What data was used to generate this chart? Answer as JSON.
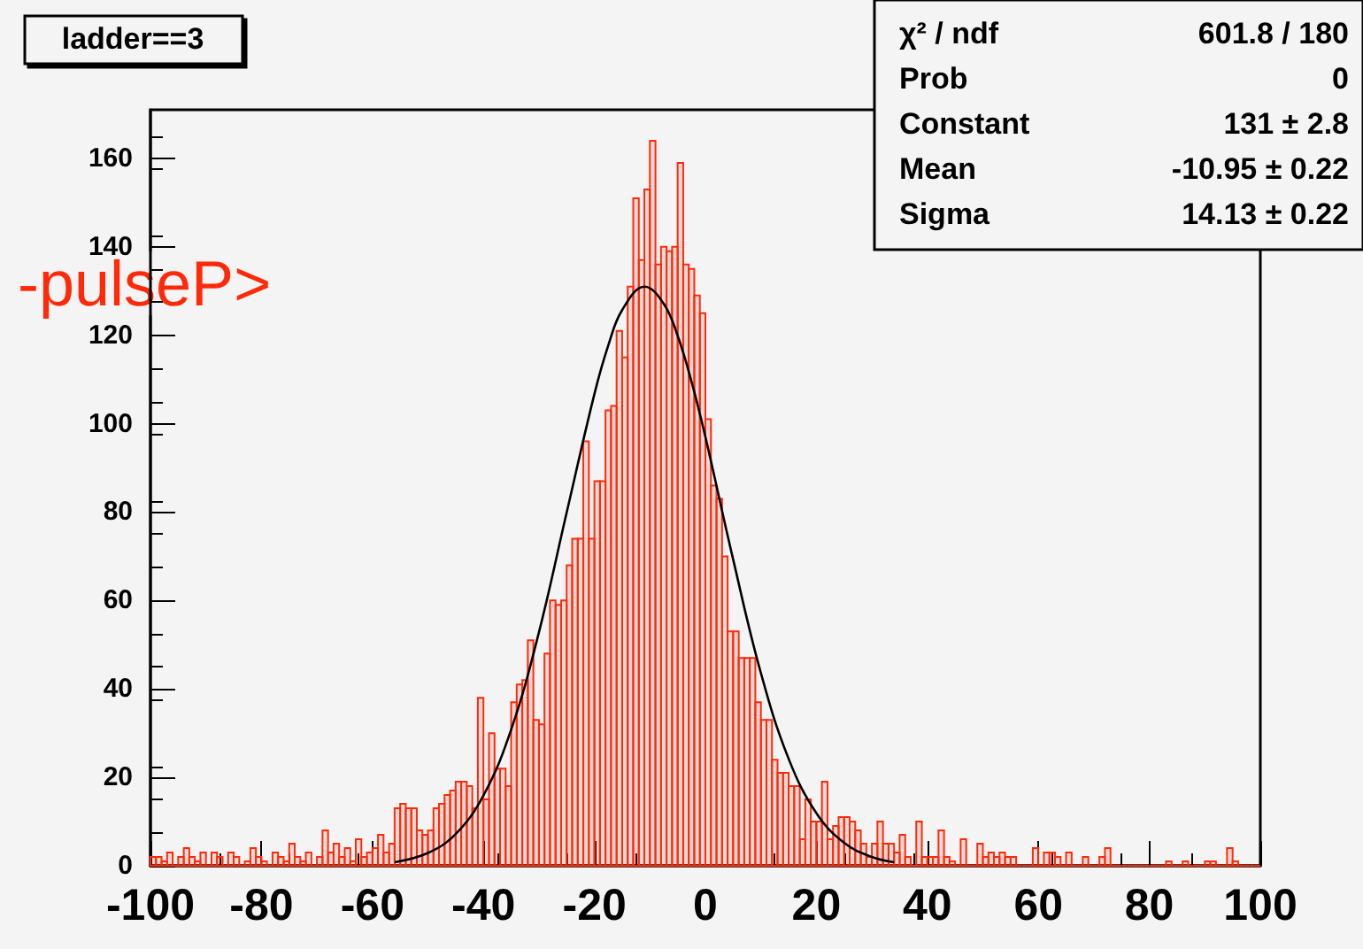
{
  "chart_data": {
    "type": "histogram",
    "title": "ladder==3",
    "ylabel": "-pulseP>",
    "annotations": [
      "χ² / ndf",
      "601.8 / 180",
      "Prob",
      "0",
      "Constant",
      "131 ± 2.8",
      "Mean",
      "-10.95 ± 0.22",
      "Sigma",
      "14.13 ± 0.22"
    ],
    "bins": [
      -100,
      -99,
      -98,
      -97,
      -96,
      -95,
      -94,
      -93,
      -92,
      -91,
      -90,
      -89,
      -88,
      -87,
      -86,
      -85,
      -84,
      -83,
      -82,
      -81,
      -80,
      -79,
      -78,
      -77,
      -76,
      -75,
      -74,
      -73,
      -72,
      -71,
      -70,
      -69,
      -68,
      -67,
      -66,
      -65,
      -64,
      -63,
      -62,
      -61,
      -60,
      -59,
      -58,
      -57,
      -56,
      -55,
      -54,
      -53,
      -52,
      -51,
      -50,
      -49,
      -48,
      -47,
      -46,
      -45,
      -44,
      -43,
      -42,
      -41,
      -40,
      -39,
      -38,
      -37,
      -36,
      -35,
      -34,
      -33,
      -32,
      -31,
      -30,
      -29,
      -28,
      -27,
      -26,
      -25,
      -24,
      -23,
      -22,
      -21,
      -20,
      -19,
      -18,
      -17,
      -16,
      -15,
      -14,
      -13,
      -12,
      -11,
      -10,
      -9,
      -8,
      -7,
      -6,
      -5,
      -4,
      -3,
      -2,
      -1,
      0,
      1,
      2,
      3,
      4,
      5,
      6,
      7,
      8,
      9,
      10,
      11,
      12,
      13,
      14,
      15,
      16,
      17,
      18,
      19,
      20,
      21,
      22,
      23,
      24,
      25,
      26,
      27,
      28,
      29,
      30,
      31,
      32,
      33,
      34,
      35,
      36,
      37,
      38,
      39,
      40,
      41,
      42,
      43,
      44,
      45,
      46,
      47,
      48,
      49,
      50,
      51,
      52,
      53,
      54,
      55,
      56,
      57,
      58,
      59,
      60,
      61,
      62,
      63,
      64,
      65,
      66,
      67,
      68,
      69,
      70,
      71,
      72,
      73,
      74,
      75,
      76,
      77,
      78,
      79,
      80,
      81,
      82,
      83,
      84,
      85,
      86,
      87,
      88,
      89,
      90,
      91,
      92,
      93,
      94,
      95,
      96,
      97,
      98,
      99,
      100
    ],
    "values": [
      2,
      2,
      1,
      3,
      0,
      2,
      4,
      2,
      1,
      3,
      0,
      3,
      2,
      0,
      3,
      2,
      0,
      1,
      4,
      2,
      1,
      0,
      3,
      2,
      1,
      5,
      2,
      1,
      3,
      0,
      2,
      8,
      3,
      5,
      2,
      4,
      1,
      6,
      2,
      3,
      4,
      7,
      3,
      5,
      13,
      14,
      13,
      13,
      8,
      7,
      8,
      13,
      14,
      16,
      17,
      19,
      19,
      18,
      13,
      38,
      15,
      30,
      22,
      22,
      18,
      37,
      41,
      42,
      51,
      33,
      32,
      48,
      60,
      59,
      60,
      68,
      74,
      74,
      96,
      74,
      87,
      87,
      103,
      104,
      121,
      115,
      131,
      151,
      137,
      153,
      164,
      136,
      140,
      139,
      140,
      159,
      136,
      135,
      129,
      125,
      101,
      86,
      83,
      70,
      53,
      53,
      47,
      47,
      47,
      37,
      33,
      33,
      24,
      21,
      21,
      18,
      18,
      6,
      15,
      10,
      10,
      19,
      6,
      9,
      11,
      11,
      10,
      8,
      5,
      2,
      5,
      10,
      5,
      5,
      3,
      7,
      2,
      0,
      10,
      2,
      2,
      2,
      8,
      2,
      1,
      0,
      6,
      0,
      0,
      5,
      2,
      3,
      2,
      3,
      2,
      2,
      0,
      0,
      0,
      4,
      0,
      3,
      3,
      2,
      0,
      3,
      0,
      0,
      2,
      0,
      0,
      2,
      4,
      0,
      0,
      0,
      0,
      0,
      0,
      0,
      0,
      0,
      0,
      1,
      0,
      0,
      1,
      0,
      0,
      0,
      1,
      1,
      0,
      0,
      4,
      1,
      0,
      0,
      0,
      0
    ],
    "color": "#ff2a0a",
    "series": [
      {
        "type": "line",
        "color": "#000000",
        "x": [
          -56,
          -50,
          -45,
          -40,
          -35,
          -30,
          -25,
          -20,
          -17.5,
          -15,
          -10.95,
          -7.5,
          -5,
          -2.5,
          0,
          5,
          10,
          15,
          20,
          25,
          30,
          34
        ],
        "values": [
          0.8,
          2.9,
          7.2,
          15.9,
          30.8,
          52.8,
          79.9,
          106.7,
          117.7,
          125.7,
          131,
          127.1,
          119.9,
          109.5,
          97.0,
          69.3,
          43.6,
          24.2,
          11.9,
          5.2,
          2.0,
          0.8
        ]
      }
    ],
    "xlim": [
      -100,
      100
    ],
    "xticks": [
      -100,
      -80,
      -60,
      -40,
      -20,
      0,
      20,
      40,
      60,
      80,
      100
    ],
    "ylim": [
      0,
      171
    ],
    "yticks": [
      0,
      20,
      40,
      60,
      80,
      100,
      120,
      140,
      160
    ],
    "grid": false
  }
}
